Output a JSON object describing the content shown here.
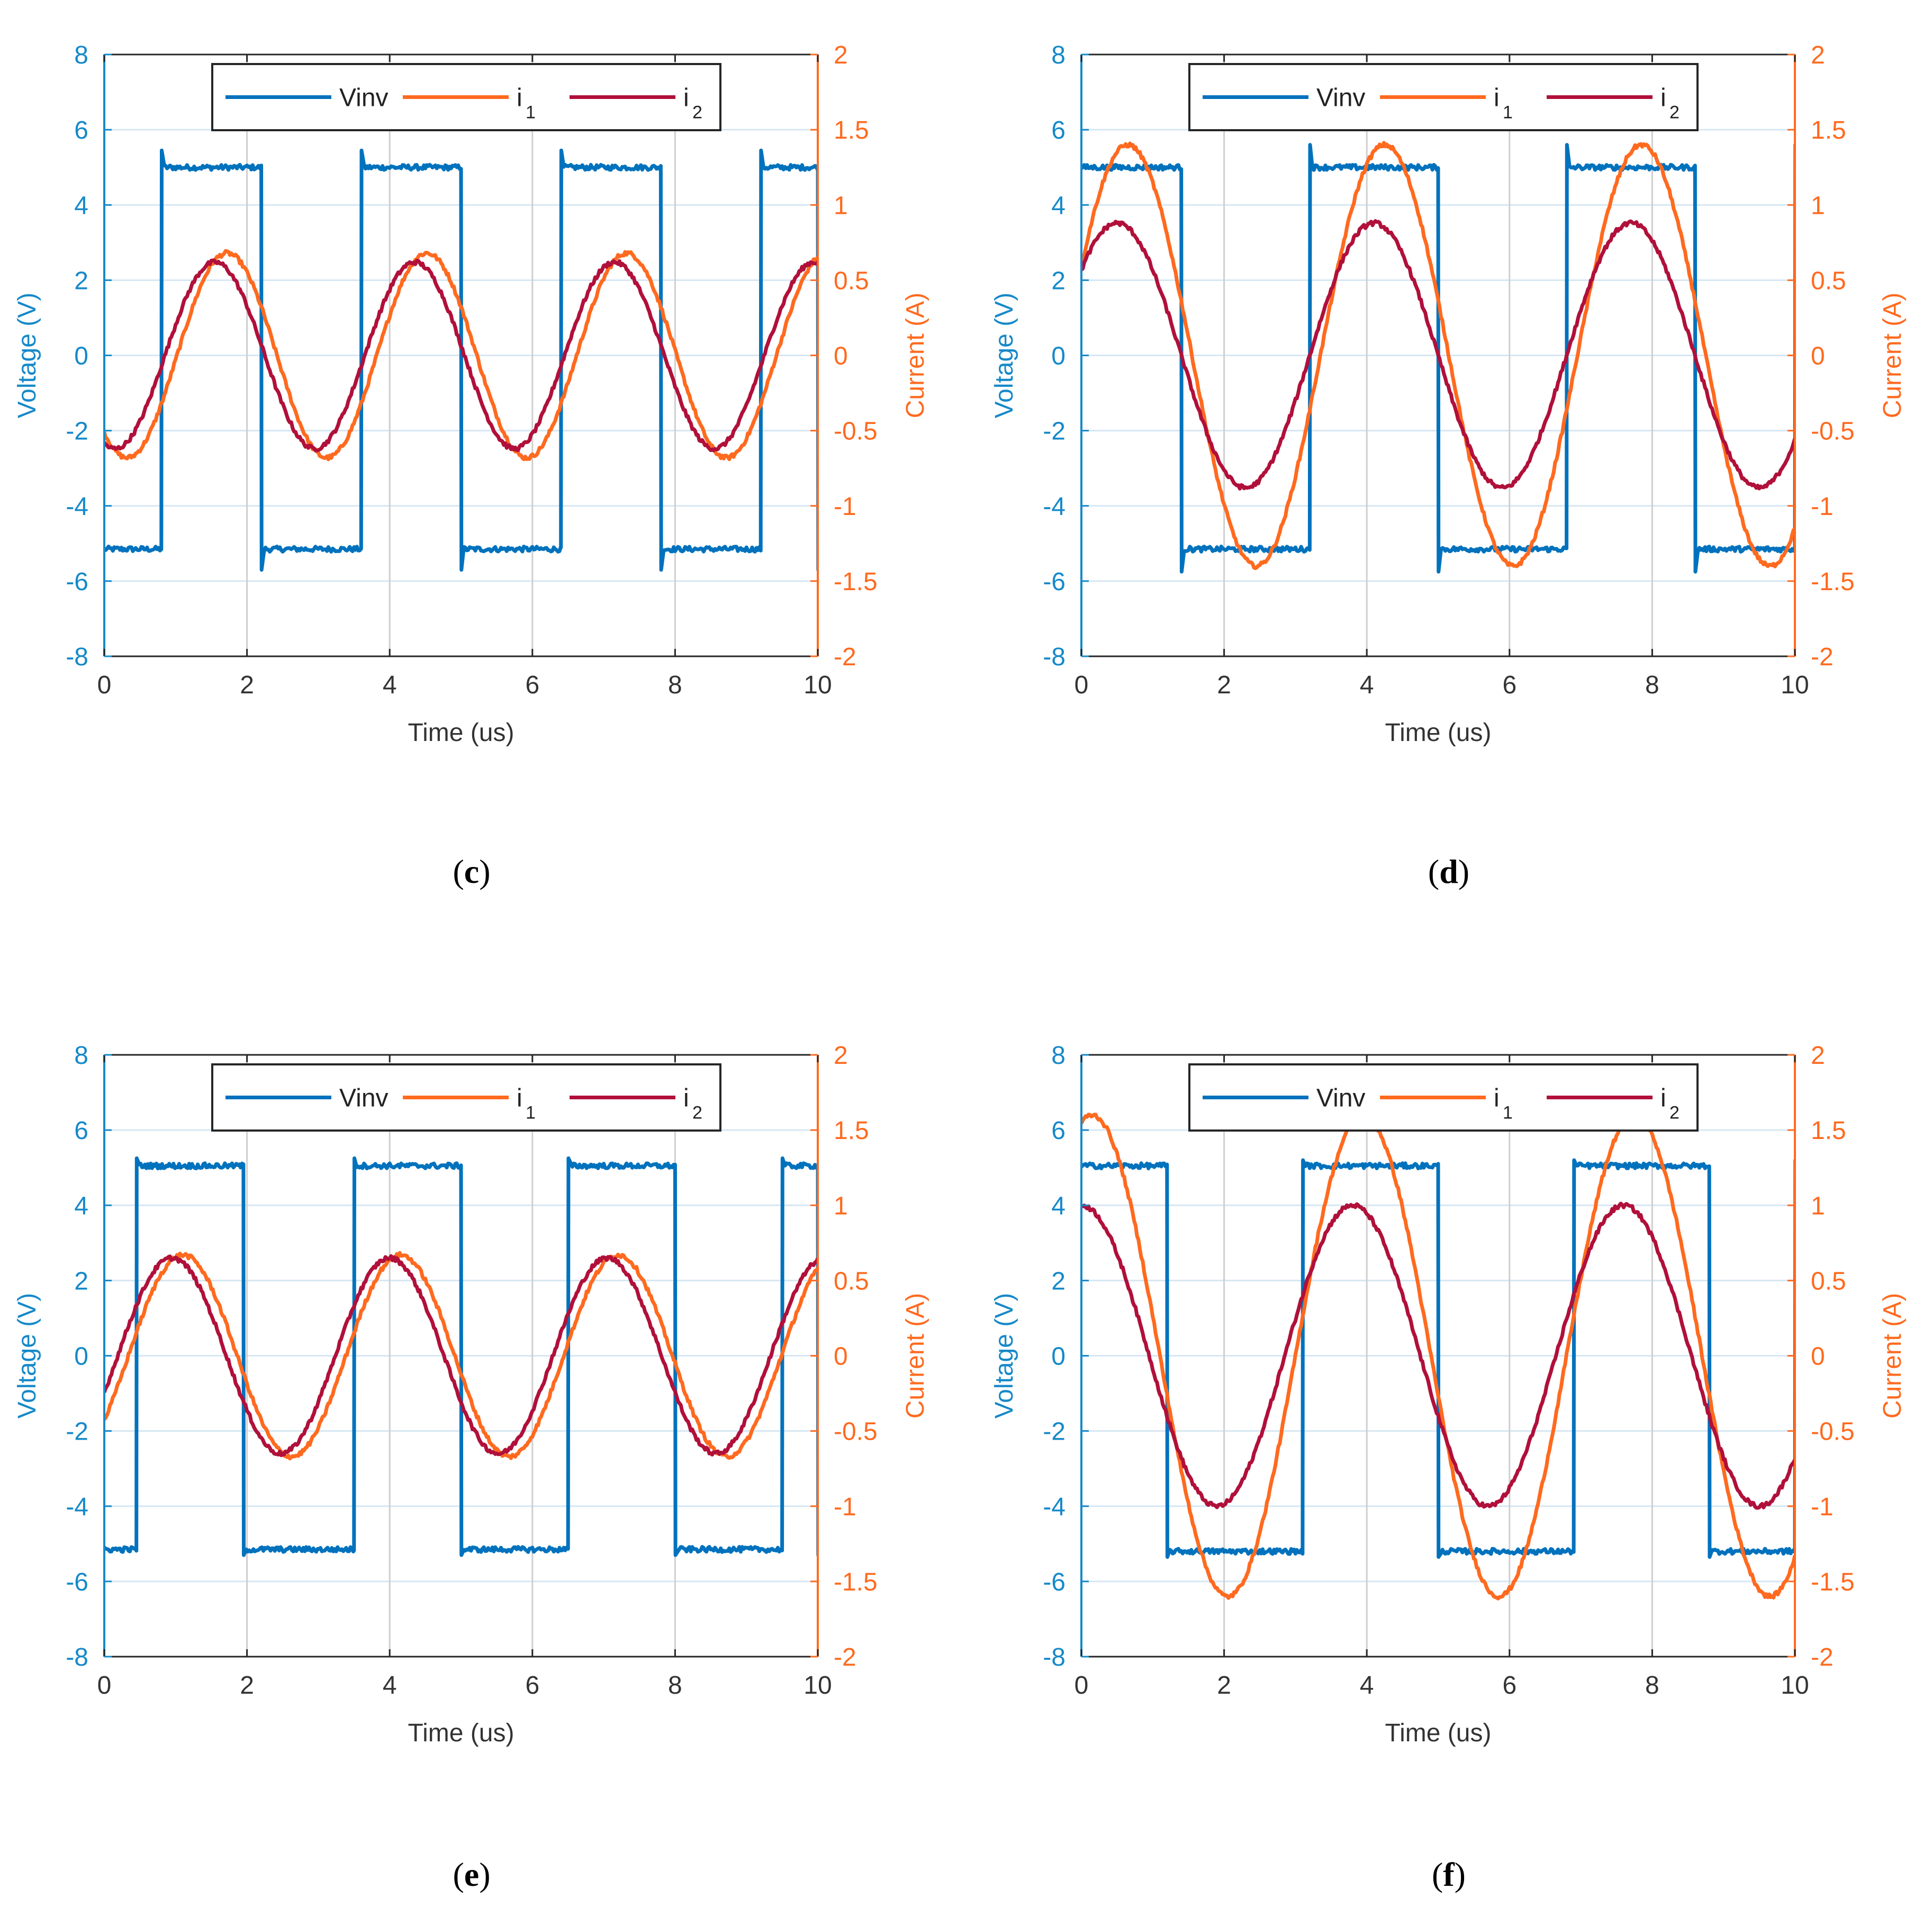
{
  "figure": {
    "colors": {
      "vinv": "#0072BD",
      "i1": "#FF6A1F",
      "i2": "#B0103A",
      "left_axis": "#1689C9",
      "right_axis": "#FF6A1F",
      "grid": "#D6E7F3",
      "vgrid": "#CFCFCF"
    }
  },
  "chart_data": [
    {
      "panel": "c",
      "caption_parts": [
        "(",
        "c",
        ")"
      ],
      "type": "line",
      "xlabel": "Time (us)",
      "ylabel_left": "Voltage (V)",
      "ylabel_right": "Current (A)",
      "xlim": [
        0,
        10
      ],
      "ylim_left": [
        -8,
        8
      ],
      "ylim_right": [
        -2,
        2
      ],
      "xticks": [
        "0",
        "2",
        "4",
        "6",
        "8",
        "10"
      ],
      "yticks_left": [
        "-8",
        "-6",
        "-4",
        "-2",
        "0",
        "2",
        "4",
        "6",
        "8"
      ],
      "yticks_right": [
        "-2",
        "-1.5",
        "-1",
        "-0.5",
        "0",
        "0.5",
        "1",
        "1.5",
        "2"
      ],
      "legend": [
        "Vinv",
        "i",
        "i"
      ],
      "legend_subscripts": [
        "",
        "1",
        "2"
      ],
      "legend_position": "top-center",
      "series": [
        {
          "name": "Vinv",
          "axis": "left",
          "kind": "square",
          "high": 5.0,
          "low": -5.15,
          "edges": [
            0.8,
            2.2,
            3.6,
            5.0,
            6.4,
            7.8,
            9.2
          ],
          "start": "low",
          "overshoot_up": 0.45,
          "overshoot_down": 0.55
        },
        {
          "name": "i1",
          "axis": "right",
          "kind": "sine",
          "amplitude": 0.68,
          "period": 2.8,
          "peak_time": 1.72
        },
        {
          "name": "i2",
          "axis": "right",
          "kind": "sine",
          "amplitude": 0.62,
          "period": 2.8,
          "peak_time": 1.55
        }
      ]
    },
    {
      "panel": "d",
      "caption_parts": [
        "(",
        "d",
        ")"
      ],
      "type": "line",
      "xlabel": "Time (us)",
      "ylabel_left": "Voltage (V)",
      "ylabel_right": "Current (A)",
      "xlim": [
        0,
        10
      ],
      "ylim_left": [
        -8,
        8
      ],
      "ylim_right": [
        -2,
        2
      ],
      "xticks": [
        "0",
        "2",
        "4",
        "6",
        "8",
        "10"
      ],
      "yticks_left": [
        "-8",
        "-6",
        "-4",
        "-2",
        "0",
        "2",
        "4",
        "6",
        "8"
      ],
      "yticks_right": [
        "-2",
        "-1.5",
        "-1",
        "-0.5",
        "0",
        "0.5",
        "1",
        "1.5",
        "2"
      ],
      "legend": [
        "Vinv",
        "i",
        "i"
      ],
      "legend_subscripts": [
        "",
        "1",
        "2"
      ],
      "legend_position": "top-center",
      "series": [
        {
          "name": "Vinv",
          "axis": "left",
          "kind": "square",
          "high": 5.0,
          "low": -5.15,
          "edges": [
            1.4,
            3.2,
            5.0,
            6.8,
            8.6
          ],
          "start": "high",
          "overshoot_up": 0.6,
          "overshoot_down": 0.6
        },
        {
          "name": "i1",
          "axis": "right",
          "kind": "sine",
          "amplitude": 1.4,
          "period": 3.6,
          "peak_time": 0.65
        },
        {
          "name": "i2",
          "axis": "right",
          "kind": "sine",
          "amplitude": 0.88,
          "period": 3.6,
          "peak_time": 0.5
        }
      ]
    },
    {
      "panel": "e",
      "caption_parts": [
        "(",
        "e",
        ")"
      ],
      "type": "line",
      "xlabel": "Time (us)",
      "ylabel_left": "Voltage (V)",
      "ylabel_right": "Current (A)",
      "xlim": [
        0,
        10
      ],
      "ylim_left": [
        -8,
        8
      ],
      "ylim_right": [
        -2,
        2
      ],
      "xticks": [
        "0",
        "2",
        "4",
        "6",
        "8",
        "10"
      ],
      "yticks_left": [
        "-8",
        "-6",
        "-4",
        "-2",
        "0",
        "2",
        "4",
        "6",
        "8"
      ],
      "yticks_right": [
        "-2",
        "-1.5",
        "-1",
        "-0.5",
        "0",
        "0.5",
        "1",
        "1.5",
        "2"
      ],
      "legend": [
        "Vinv",
        "i",
        "i"
      ],
      "legend_subscripts": [
        "",
        "1",
        "2"
      ],
      "legend_position": "top-center",
      "series": [
        {
          "name": "Vinv",
          "axis": "left",
          "kind": "square",
          "high": 5.05,
          "low": -5.15,
          "edges": [
            0.45,
            1.95,
            3.5,
            5.0,
            6.5,
            8.0,
            9.5
          ],
          "start": "low",
          "overshoot_up": 0.2,
          "overshoot_down": 0.15
        },
        {
          "name": "i1",
          "axis": "right",
          "kind": "sine",
          "amplitude": 0.67,
          "period": 3.05,
          "peak_time": 1.1
        },
        {
          "name": "i2",
          "axis": "right",
          "kind": "sine",
          "amplitude": 0.65,
          "period": 3.05,
          "peak_time": 0.95
        }
      ]
    },
    {
      "panel": "f",
      "caption_parts": [
        "(",
        "f",
        ")"
      ],
      "type": "line",
      "xlabel": "Time (us)",
      "ylabel_left": "Voltage (V)",
      "ylabel_right": "Current (A)",
      "xlim": [
        0,
        10
      ],
      "ylim_left": [
        -8,
        8
      ],
      "ylim_right": [
        -2,
        2
      ],
      "xticks": [
        "0",
        "2",
        "4",
        "6",
        "8",
        "10"
      ],
      "yticks_left": [
        "-8",
        "-6",
        "-4",
        "-2",
        "0",
        "2",
        "4",
        "6",
        "8"
      ],
      "yticks_right": [
        "-2",
        "-1.5",
        "-1",
        "-0.5",
        "0",
        "0.5",
        "1",
        "1.5",
        "2"
      ],
      "legend": [
        "Vinv",
        "i",
        "i"
      ],
      "legend_subscripts": [
        "",
        "1",
        "2"
      ],
      "legend_position": "top-center",
      "series": [
        {
          "name": "Vinv",
          "axis": "left",
          "kind": "square",
          "high": 5.05,
          "low": -5.2,
          "edges": [
            1.2,
            3.1,
            5.0,
            6.9,
            8.8
          ],
          "start": "high",
          "overshoot_up": 0.15,
          "overshoot_down": 0.15
        },
        {
          "name": "i1",
          "axis": "right",
          "kind": "sine",
          "amplitude": 1.6,
          "period": 3.8,
          "peak_time": 0.15
        },
        {
          "name": "i2",
          "axis": "right",
          "kind": "sine",
          "amplitude": 1.0,
          "period": 3.8,
          "peak_time": 0.0
        }
      ]
    }
  ]
}
